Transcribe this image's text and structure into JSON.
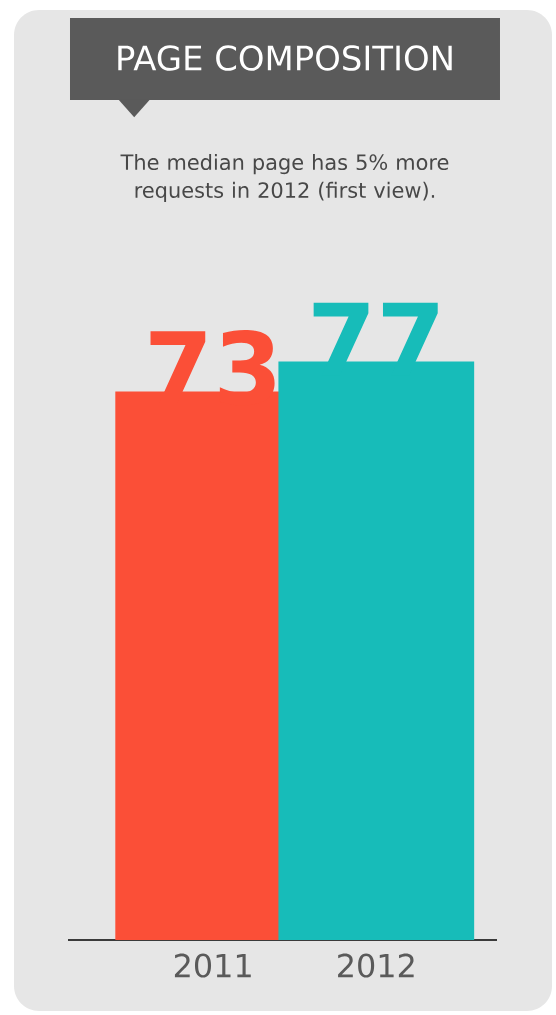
{
  "chart_data": {
    "type": "bar",
    "title": "PAGE COMPOSITION",
    "subtitle": "The median page has 5% more requests in 2012 (first view).",
    "categories": [
      "2011",
      "2012"
    ],
    "values": [
      73,
      77
    ],
    "colors": [
      "#fb4f37",
      "#17bcb9"
    ],
    "data_labels": true
  }
}
